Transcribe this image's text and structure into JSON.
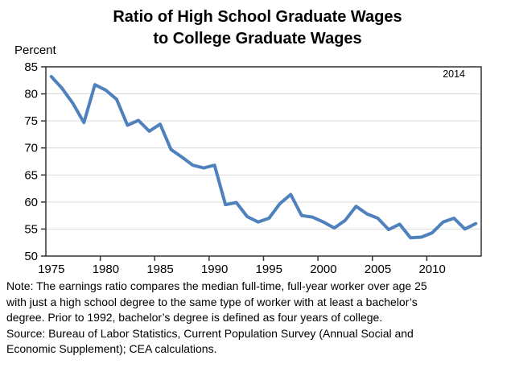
{
  "title": {
    "line1": "Ratio of High School Graduate Wages",
    "line2": "to College Graduate Wages"
  },
  "axis_unit_label": "Percent",
  "annotation_last_year": "2014",
  "notes": [
    "Note: The earnings ratio compares the median full-time, full-year worker over age 25",
    "with just a high school degree to the same type of worker with at least a bachelor’s",
    "degree. Prior to 1992, bachelor’s degree is defined as four years of college.",
    "Source: Bureau of Labor Statistics, Current Population Survey (Annual Social and",
    "Economic Supplement); CEA calculations."
  ],
  "colors": {
    "line": "#4F81BD",
    "grid": "#D9D9D9",
    "axis": "#333333",
    "text": "#000000"
  },
  "chart_data": {
    "type": "line",
    "title": "Ratio of High School Graduate Wages to College Graduate Wages",
    "xlabel": "",
    "ylabel": "Percent",
    "ylim": [
      50,
      85
    ],
    "ytick_interval": 5,
    "grid": "horizontal",
    "legend": "none",
    "annotation": "2014",
    "xticks_labeled": [
      1975,
      1980,
      1985,
      1990,
      1995,
      2000,
      2005,
      2010
    ],
    "x": [
      1975,
      1976,
      1977,
      1978,
      1979,
      1980,
      1981,
      1982,
      1983,
      1984,
      1985,
      1986,
      1987,
      1988,
      1989,
      1990,
      1991,
      1992,
      1993,
      1994,
      1995,
      1996,
      1997,
      1998,
      1999,
      2000,
      2001,
      2002,
      2003,
      2004,
      2005,
      2006,
      2007,
      2008,
      2009,
      2010,
      2011,
      2012,
      2013,
      2014
    ],
    "values": [
      83.2,
      81.0,
      78.2,
      74.7,
      81.7,
      80.7,
      79.0,
      74.2,
      75.1,
      73.1,
      74.4,
      69.7,
      68.3,
      66.8,
      66.3,
      66.8,
      59.5,
      59.9,
      57.3,
      56.3,
      57.0,
      59.7,
      61.4,
      57.5,
      57.2,
      56.3,
      55.2,
      56.6,
      59.2,
      57.8,
      57.0,
      54.9,
      55.9,
      53.4,
      53.5,
      54.3,
      56.3,
      57.0,
      55.0,
      56.0
    ]
  }
}
